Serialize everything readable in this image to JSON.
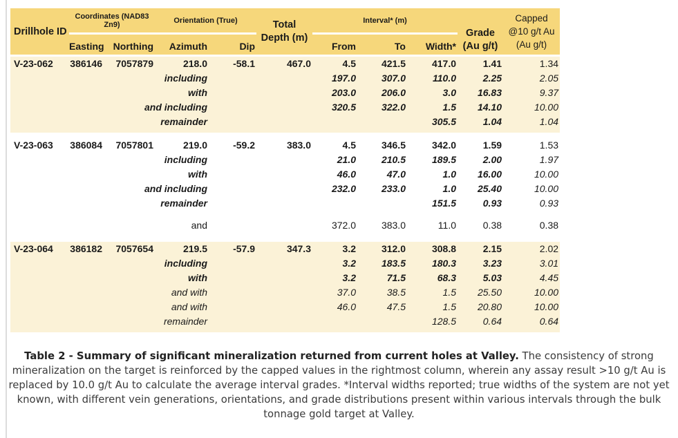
{
  "colors": {
    "header_bg": "#f6d77b",
    "row_bg_cream": "#fbf2d7",
    "row_bg_white": "#ffffff",
    "table_text": "#1a1a1a",
    "caption_text": "#3a3a3a",
    "left_rule": "#dcdcdc"
  },
  "table": {
    "header": {
      "drillhole_id": "Drillhole ID",
      "coordinates_group": "Coordinates (NAD83 Zn9)",
      "easting": "Easting",
      "northing": "Northing",
      "orientation_group": "Orientation (True)",
      "azimuth": "Azimuth",
      "dip": "Dip",
      "total_depth_line1": "Total",
      "total_depth_line2": "Depth (m)",
      "interval_group": "Interval* (m)",
      "from": "From",
      "to": "To",
      "width": "Width*",
      "grade_line1": "Grade",
      "grade_line2": "(Au g/t)",
      "capped_line1": "Capped",
      "capped_line2": "@10 g/t Au",
      "capped_line3": "(Au g/t)"
    },
    "blocks": [
      {
        "hole": "V-23-062",
        "easting": "386146",
        "northing": "7057879",
        "azimuth": "218.0",
        "dip": "-58.1",
        "depth": "467.0",
        "bg": "cream",
        "rows": [
          {
            "label": "",
            "from": "4.5",
            "to": "421.5",
            "width": "417.0",
            "grade": "1.41",
            "capped": "1.34",
            "emph": "main"
          },
          {
            "label": "including",
            "from": "197.0",
            "to": "307.0",
            "width": "110.0",
            "grade": "2.25",
            "capped": "2.05",
            "emph": "strong"
          },
          {
            "label": "with",
            "from": "203.0",
            "to": "206.0",
            "width": "3.0",
            "grade": "16.83",
            "capped": "9.37",
            "emph": "strong"
          },
          {
            "label": "and including",
            "from": "320.5",
            "to": "322.0",
            "width": "1.5",
            "grade": "14.10",
            "capped": "10.00",
            "emph": "strong"
          },
          {
            "label": "remainder",
            "from": "",
            "to": "",
            "width": "305.5",
            "grade": "1.04",
            "capped": "1.04",
            "emph": "strong"
          }
        ]
      },
      {
        "hole": "V-23-063",
        "easting": "386084",
        "northing": "7057801",
        "azimuth": "219.0",
        "dip": "-59.2",
        "depth": "383.0",
        "bg": "white",
        "rows": [
          {
            "label": "",
            "from": "4.5",
            "to": "346.5",
            "width": "342.0",
            "grade": "1.59",
            "capped": "1.53",
            "emph": "main"
          },
          {
            "label": "including",
            "from": "21.0",
            "to": "210.5",
            "width": "189.5",
            "grade": "2.00",
            "capped": "1.97",
            "emph": "strong"
          },
          {
            "label": "with",
            "from": "46.0",
            "to": "47.0",
            "width": "1.0",
            "grade": "16.00",
            "capped": "10.00",
            "emph": "strong"
          },
          {
            "label": "and including",
            "from": "232.0",
            "to": "233.0",
            "width": "1.0",
            "grade": "25.40",
            "capped": "10.00",
            "emph": "strong"
          },
          {
            "label": "remainder",
            "from": "",
            "to": "",
            "width": "151.5",
            "grade": "0.93",
            "capped": "0.93",
            "emph": "strong"
          },
          {
            "label": "and",
            "from": "372.0",
            "to": "383.0",
            "width": "11.0",
            "grade": "0.38",
            "capped": "0.38",
            "emph": "plain",
            "gap_before": true
          }
        ]
      },
      {
        "hole": "V-23-064",
        "easting": "386182",
        "northing": "7057654",
        "azimuth": "219.5",
        "dip": "-57.9",
        "depth": "347.3",
        "bg": "cream",
        "rows": [
          {
            "label": "",
            "from": "3.2",
            "to": "312.0",
            "width": "308.8",
            "grade": "2.15",
            "capped": "2.02",
            "emph": "main"
          },
          {
            "label": "including",
            "from": "3.2",
            "to": "183.5",
            "width": "180.3",
            "grade": "3.23",
            "capped": "3.01",
            "emph": "strong"
          },
          {
            "label": "with",
            "from": "3.2",
            "to": "71.5",
            "width": "68.3",
            "grade": "5.03",
            "capped": "4.45",
            "emph": "strong"
          },
          {
            "label": "and with",
            "from": "37.0",
            "to": "38.5",
            "width": "1.5",
            "grade": "25.50",
            "capped": "10.00",
            "emph": "light"
          },
          {
            "label": "and with",
            "from": "46.0",
            "to": "47.5",
            "width": "1.5",
            "grade": "20.80",
            "capped": "10.00",
            "emph": "light"
          },
          {
            "label": "remainder",
            "from": "",
            "to": "",
            "width": "128.5",
            "grade": "0.64",
            "capped": "0.64",
            "emph": "light"
          }
        ]
      }
    ]
  },
  "caption": {
    "bold": "Table 2 - Summary of significant mineralization returned from current holes at Valley.",
    "regular": " The consistency of strong mineralization on the target is reinforced by the capped values in the rightmost column, wherein any assay result >10 g/t Au is replaced by 10.0 g/t Au to calculate the average interval grades. *Interval widths reported; true widths of the system are not yet known, with different vein generations, orientations, and grade distributions present within various intervals through the bulk tonnage gold target at Valley."
  }
}
